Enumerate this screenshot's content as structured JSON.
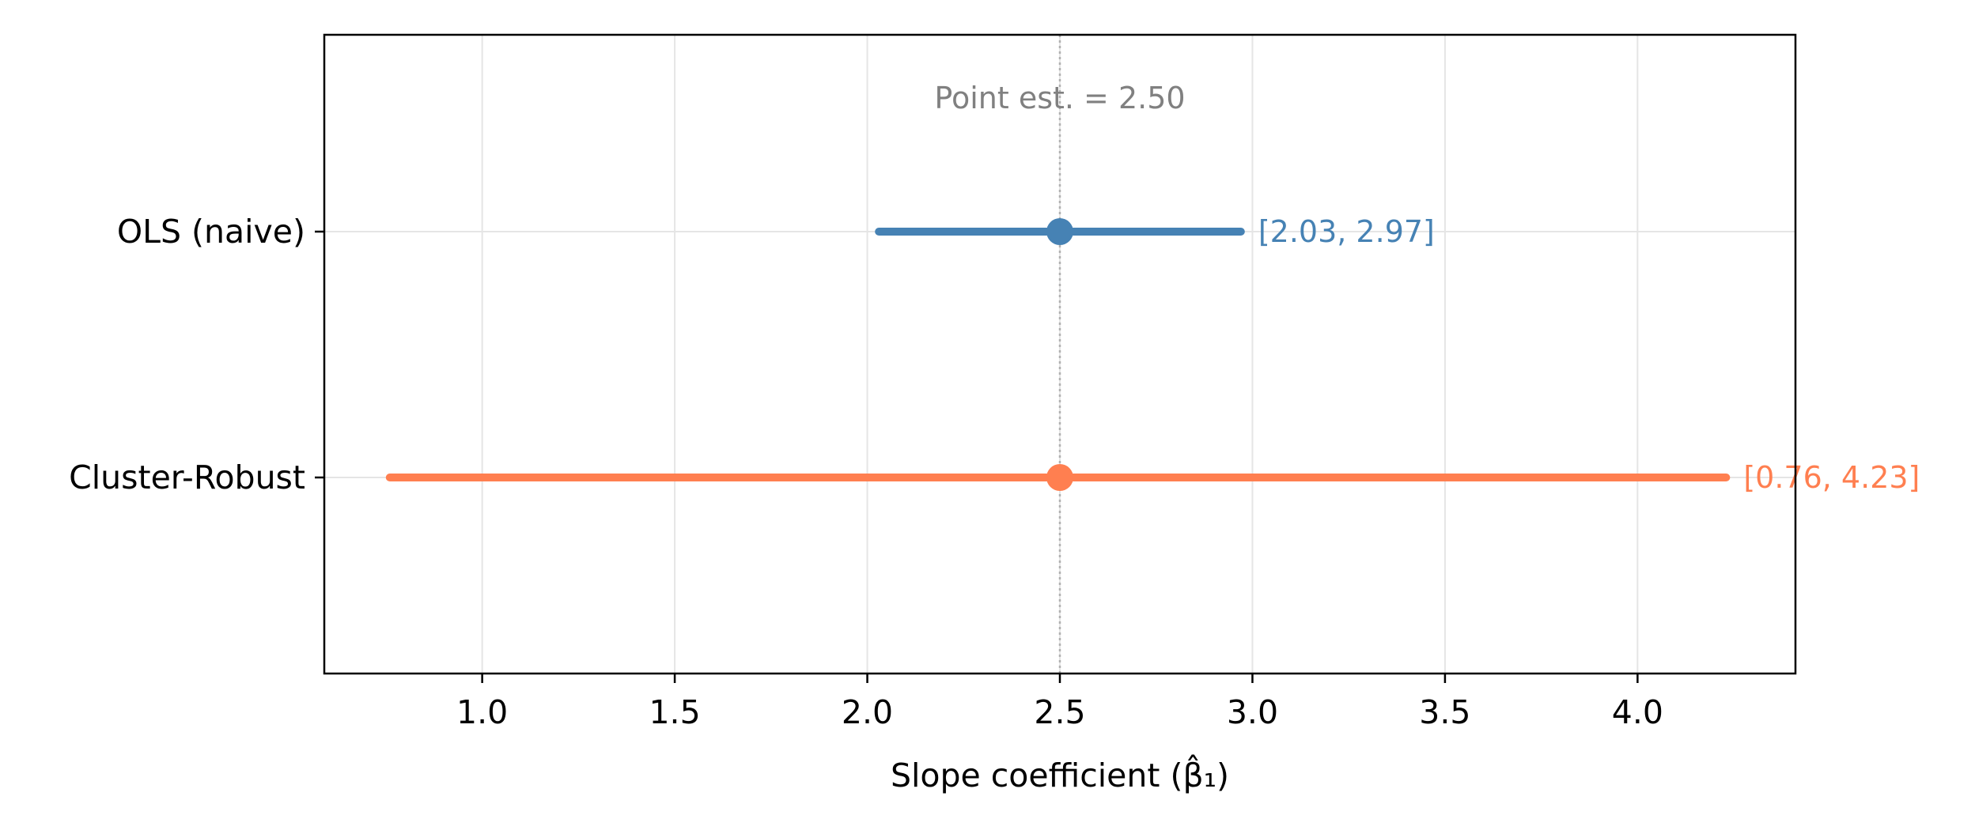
{
  "chart_data": {
    "type": "forest",
    "xlabel": "Slope coefficient (β̂₁)",
    "xlim": [
      0.59,
      4.41
    ],
    "xticks": [
      "1.0",
      "1.5",
      "2.0",
      "2.5",
      "3.0",
      "3.5",
      "4.0"
    ],
    "xtick_values": [
      1.0,
      1.5,
      2.0,
      2.5,
      3.0,
      3.5,
      4.0
    ],
    "grid": true,
    "reference_line": {
      "value": 2.5,
      "label": "Point est. = 2.50",
      "style": "dotted",
      "color": "#b0b0b0"
    },
    "series": [
      {
        "name": "OLS (naive)",
        "estimate": 2.5,
        "lower": 2.03,
        "upper": 2.97,
        "ci_label": "[2.03, 2.97]",
        "color": "#4682b4"
      },
      {
        "name": "Cluster-Robust",
        "estimate": 2.5,
        "lower": 0.76,
        "upper": 4.23,
        "ci_label": "[0.76, 4.23]",
        "color": "#ff7f50"
      }
    ]
  }
}
